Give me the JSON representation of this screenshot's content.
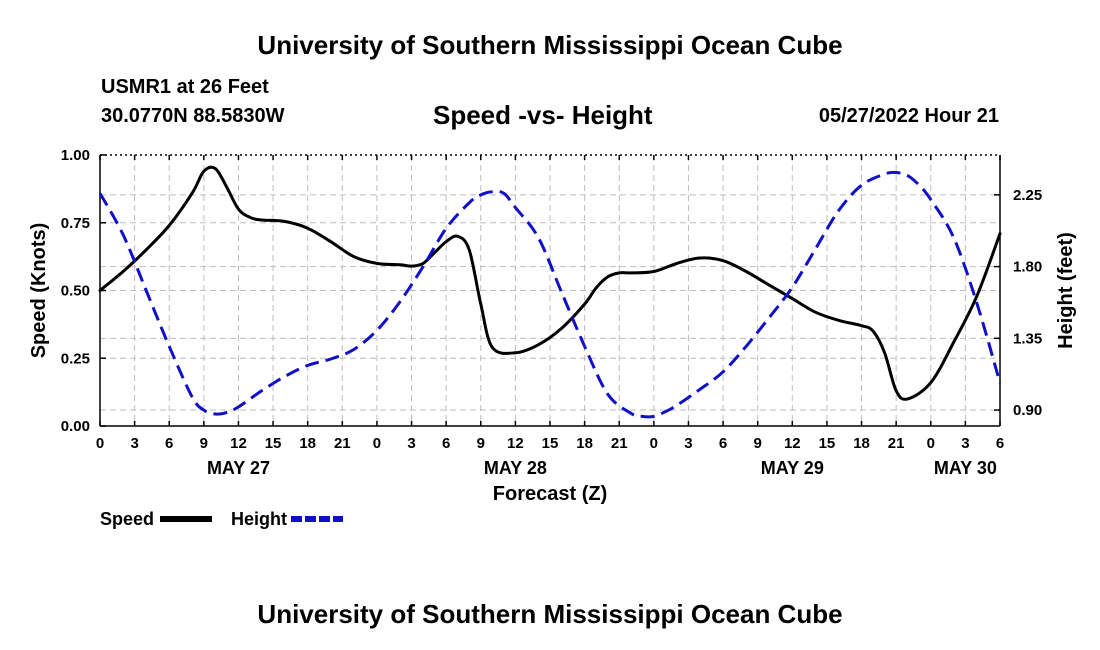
{
  "header": {
    "title": "University of Southern Mississippi Ocean Cube",
    "station": "USMR1 at 26 Feet",
    "coordinates": "30.0770N  88.5830W",
    "run_time": "05/27/2022 Hour 21"
  },
  "footer": {
    "title": "University of Southern Mississippi Ocean Cube"
  },
  "chart_data": {
    "type": "line",
    "title": "Speed -vs- Height",
    "xlabel": "Forecast (Z)",
    "ylabel": "Speed (Knots)",
    "y2label": "Height (feet)",
    "xlim": [
      0,
      78
    ],
    "ylim": [
      0,
      1
    ],
    "y2lim": [
      0.8,
      2.5
    ],
    "x_ticks": [
      0,
      3,
      6,
      9,
      12,
      15,
      18,
      21,
      24,
      27,
      30,
      33,
      36,
      39,
      42,
      45,
      48,
      51,
      54,
      57,
      60,
      63,
      66,
      69,
      72,
      75,
      78
    ],
    "x_tick_labels": [
      "0",
      "3",
      "6",
      "9",
      "12",
      "15",
      "18",
      "21",
      "0",
      "3",
      "6",
      "9",
      "12",
      "15",
      "18",
      "21",
      "0",
      "3",
      "6",
      "9",
      "12",
      "15",
      "18",
      "21",
      "0",
      "3",
      "6"
    ],
    "y_ticks": [
      0,
      0.25,
      0.5,
      0.75,
      1.0
    ],
    "y_tick_labels": [
      "0.00",
      "0.25",
      "0.50",
      "0.75",
      "1.00"
    ],
    "y2_ticks": [
      0.9,
      1.35,
      1.8,
      2.25
    ],
    "y2_tick_labels": [
      "0.90",
      "1.35",
      "1.80",
      "2.25"
    ],
    "day_labels": [
      {
        "label": "MAY 27",
        "x": 12
      },
      {
        "label": "MAY 28",
        "x": 36
      },
      {
        "label": "MAY 29",
        "x": 60
      },
      {
        "label": "MAY 30",
        "x": 75
      }
    ],
    "grid": true,
    "legend_position": "bottom-left",
    "series": [
      {
        "name": "Speed",
        "axis": "left",
        "style": "solid",
        "color": "#000000",
        "x": [
          0,
          2,
          4,
          6,
          8,
          9,
          10,
          11,
          12,
          13,
          14,
          16,
          18,
          20,
          22,
          24,
          26,
          27,
          28,
          29,
          30,
          31,
          32,
          33,
          34,
          36,
          38,
          40,
          42,
          43,
          44,
          45,
          46,
          48,
          50,
          52,
          54,
          56,
          58,
          60,
          62,
          64,
          66,
          67,
          68,
          69,
          70,
          72,
          74,
          76,
          78
        ],
        "values": [
          0.5,
          0.57,
          0.65,
          0.74,
          0.86,
          0.94,
          0.95,
          0.88,
          0.8,
          0.77,
          0.76,
          0.755,
          0.73,
          0.68,
          0.625,
          0.6,
          0.595,
          0.59,
          0.6,
          0.64,
          0.68,
          0.7,
          0.65,
          0.45,
          0.29,
          0.27,
          0.3,
          0.36,
          0.45,
          0.51,
          0.55,
          0.565,
          0.565,
          0.57,
          0.6,
          0.62,
          0.61,
          0.57,
          0.52,
          0.47,
          0.42,
          0.39,
          0.37,
          0.35,
          0.27,
          0.13,
          0.1,
          0.16,
          0.31,
          0.48,
          0.71
        ]
      },
      {
        "name": "Height",
        "axis": "right",
        "style": "dashed",
        "color": "#1010c8",
        "x": [
          0,
          2,
          4,
          6,
          8,
          9,
          10,
          11,
          12,
          14,
          16,
          18,
          20,
          22,
          24,
          26,
          28,
          30,
          32,
          33,
          34,
          35,
          36,
          38,
          40,
          42,
          44,
          46,
          47,
          48,
          49,
          50,
          52,
          54,
          56,
          58,
          60,
          62,
          64,
          66,
          68,
          69,
          70,
          71,
          72,
          74,
          76,
          78
        ],
        "values": [
          2.26,
          2.0,
          1.65,
          1.3,
          0.98,
          0.9,
          0.875,
          0.885,
          0.92,
          1.02,
          1.11,
          1.18,
          1.22,
          1.28,
          1.4,
          1.58,
          1.8,
          2.04,
          2.2,
          2.25,
          2.27,
          2.26,
          2.17,
          1.98,
          1.64,
          1.3,
          1.0,
          0.88,
          0.86,
          0.86,
          0.89,
          0.93,
          1.03,
          1.14,
          1.3,
          1.48,
          1.67,
          1.91,
          2.15,
          2.31,
          2.38,
          2.39,
          2.37,
          2.31,
          2.22,
          1.98,
          1.57,
          1.07
        ]
      }
    ]
  }
}
